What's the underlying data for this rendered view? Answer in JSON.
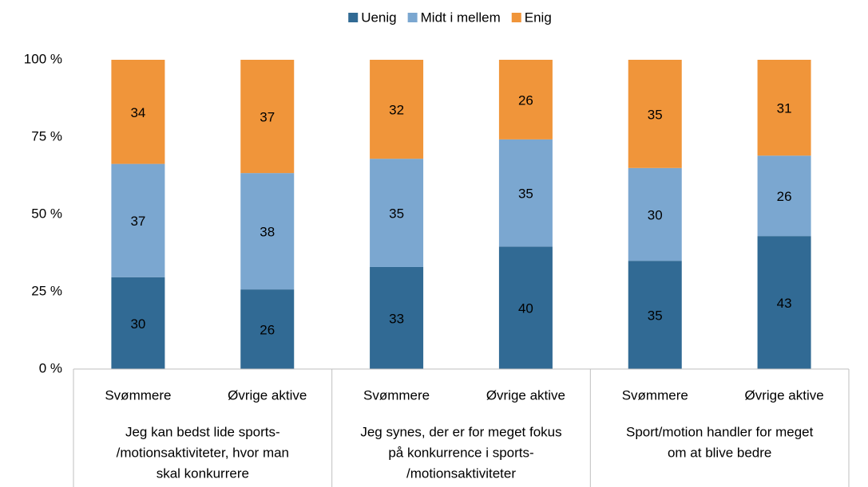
{
  "chart_data": {
    "type": "stacked_percent_bar",
    "groups": [
      {
        "label": [
          "Jeg kan bedst lide sports-",
          "/motionsaktiviteter, hvor man",
          "skal konkurrere"
        ],
        "categories": [
          "Svømmere",
          "Øvrige aktive"
        ]
      },
      {
        "label": [
          "Jeg synes, der er for meget fokus",
          "på konkurrence i sports-",
          "/motionsaktiviteter"
        ],
        "categories": [
          "Svømmere",
          "Øvrige aktive"
        ]
      },
      {
        "label": [
          "Sport/motion handler for meget",
          "om at blive bedre"
        ],
        "categories": [
          "Svømmere",
          "Øvrige aktive"
        ]
      }
    ],
    "series": [
      {
        "name": "Uenig",
        "color": "#316a94",
        "label_color": "#ffffff",
        "values": [
          30,
          26,
          33,
          40,
          35,
          43
        ]
      },
      {
        "name": "Midt i mellem",
        "color": "#7ba7d0",
        "label_color": "#000000",
        "values": [
          37,
          38,
          35,
          35,
          30,
          26
        ]
      },
      {
        "name": "Enig",
        "color": "#f0953a",
        "label_color": "#000000",
        "values": [
          34,
          37,
          32,
          26,
          35,
          31
        ]
      }
    ],
    "ylim": [
      0,
      100
    ],
    "yticks": [
      {
        "value": 0,
        "label": "0 %"
      },
      {
        "value": 25,
        "label": "25 %"
      },
      {
        "value": 50,
        "label": "50 %"
      },
      {
        "value": 75,
        "label": "75 %"
      },
      {
        "value": 100,
        "label": "100 %"
      }
    ],
    "legend": "top",
    "grid": false
  }
}
